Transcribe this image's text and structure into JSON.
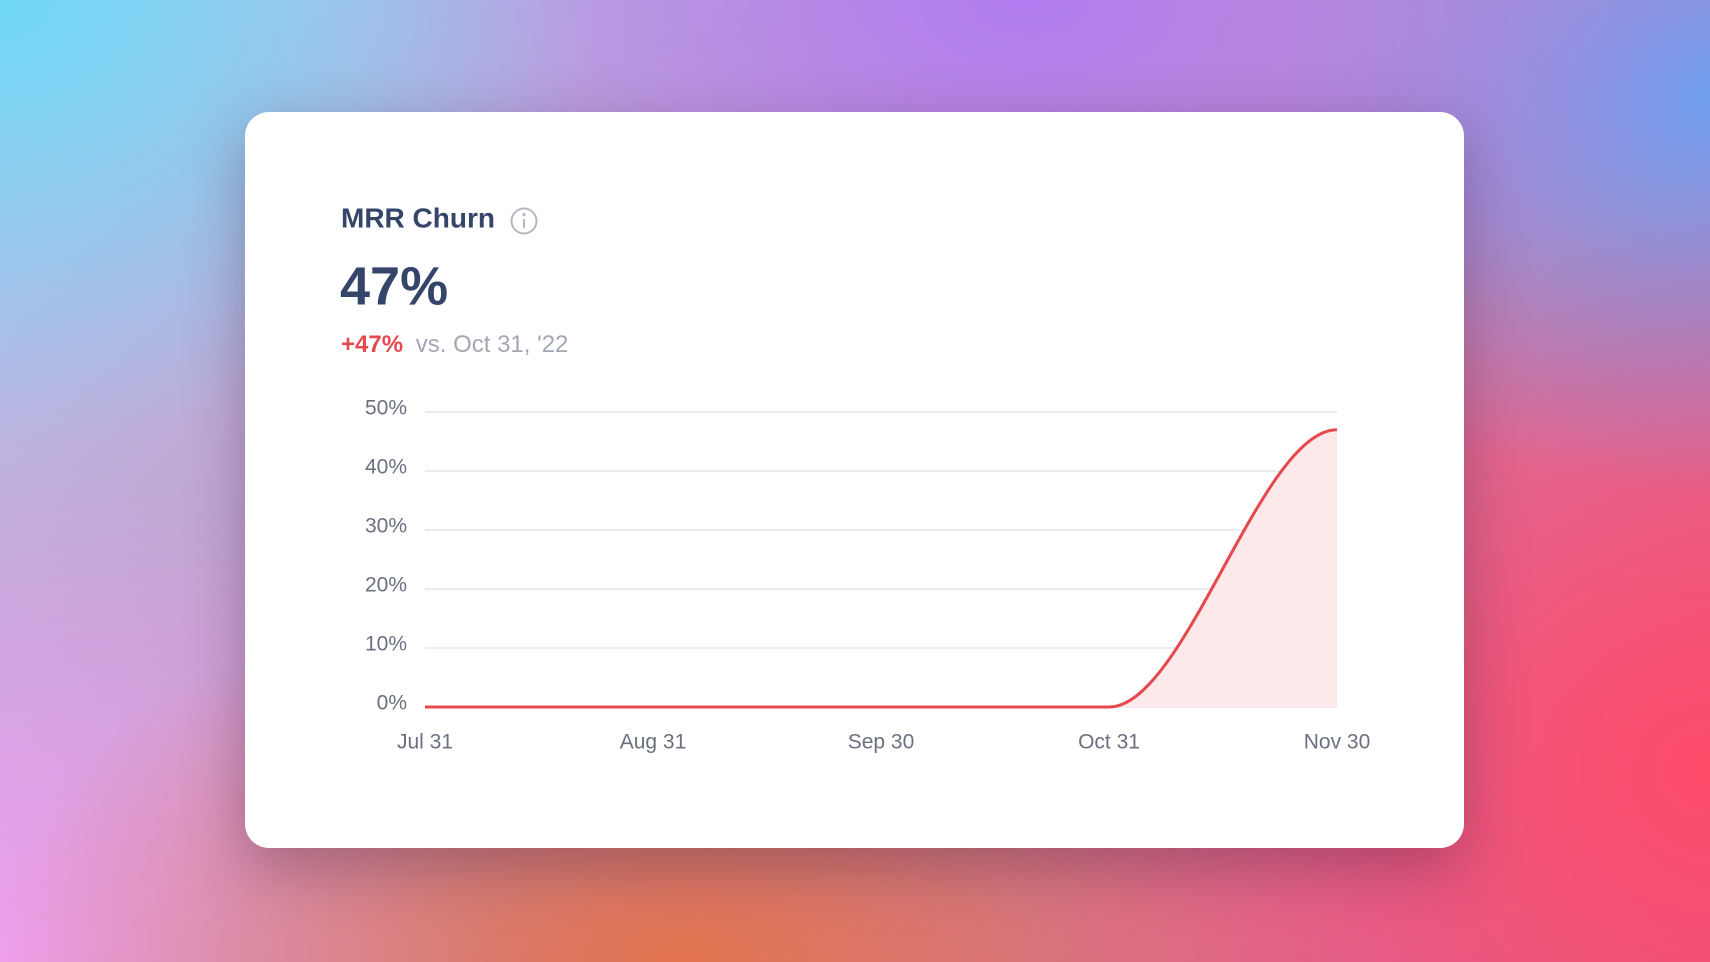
{
  "chart_data": {
    "type": "line",
    "title": "MRR Churn",
    "headline": "47%",
    "change": "+47%",
    "comparison": "vs. Oct 31, '22",
    "categories": [
      "Jul 31",
      "Aug 31",
      "Sep 30",
      "Oct 31",
      "Nov 30"
    ],
    "values": [
      0,
      0,
      0,
      0,
      47
    ],
    "color": "#e5484d",
    "fill": "#fde8ea",
    "ylim": [
      0,
      50
    ],
    "yticks": [
      {
        "value": 0,
        "label": "0%"
      },
      {
        "value": 10,
        "label": "10%"
      },
      {
        "value": 20,
        "label": "20%"
      },
      {
        "value": 30,
        "label": "30%"
      },
      {
        "value": 40,
        "label": "40%"
      },
      {
        "value": 50,
        "label": "50%"
      }
    ],
    "grid": true
  }
}
